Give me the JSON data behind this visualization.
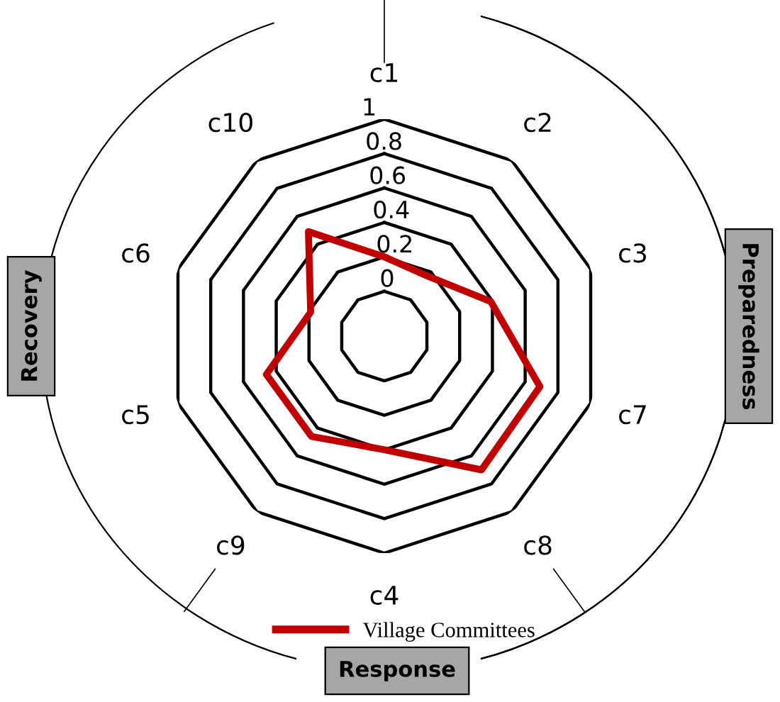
{
  "chart_data": {
    "type": "radar",
    "categories": [
      "c1",
      "c2",
      "c3",
      "c7",
      "c8",
      "c4",
      "c9",
      "c5",
      "c6",
      "c10"
    ],
    "series": [
      {
        "name": "Village Committees",
        "color": "#c00000",
        "values": [
          0.2,
          0.17,
          0.39,
          0.69,
          0.7,
          0.4,
          0.46,
          0.46,
          0.19,
          0.49
        ]
      }
    ],
    "ylim": [
      -0.26,
      1
    ],
    "yticks": [
      0,
      0.2,
      0.4,
      0.6,
      0.8,
      1
    ],
    "grid": true,
    "legend": "bottom",
    "annotations": [
      "Recovery",
      "Preparedness",
      "Response"
    ]
  }
}
